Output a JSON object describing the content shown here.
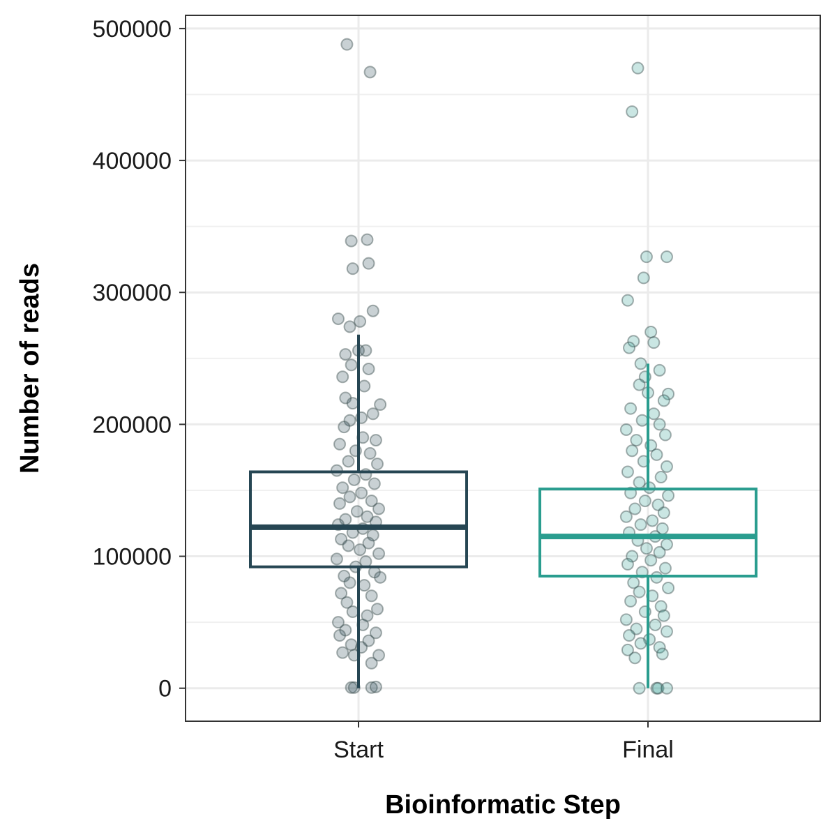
{
  "chart_data": {
    "type": "boxplot",
    "xlabel": "Bioinformatic Step",
    "ylabel": "Number of reads",
    "categories": [
      "Start",
      "Final"
    ],
    "ylim": [
      -25000,
      510000
    ],
    "yticks": [
      0,
      100000,
      200000,
      300000,
      400000,
      500000
    ],
    "ytick_labels": [
      "0",
      "100000",
      "200000",
      "300000",
      "400000",
      "500000"
    ],
    "grid": true,
    "legend": "none",
    "colors": {
      "Start": "#264653",
      "Final": "#2a9d8f",
      "point_stroke": "#5a6a6a"
    },
    "boxes": [
      {
        "category": "Start",
        "min": 0,
        "q1": 92000,
        "median": 122000,
        "q3": 164000,
        "max": 268000
      },
      {
        "category": "Final",
        "min": 0,
        "q1": 85000,
        "median": 115000,
        "q3": 151000,
        "max": 246000
      }
    ],
    "points": {
      "Start": [
        {
          "x": -0.08,
          "y": 488000
        },
        {
          "x": 0.08,
          "y": 467000
        },
        {
          "x": -0.05,
          "y": 339000
        },
        {
          "x": 0.06,
          "y": 340000
        },
        {
          "x": -0.04,
          "y": 318000
        },
        {
          "x": 0.07,
          "y": 322000
        },
        {
          "x": 0.1,
          "y": 286000
        },
        {
          "x": -0.14,
          "y": 280000
        },
        {
          "x": 0.01,
          "y": 278000
        },
        {
          "x": -0.06,
          "y": 274000
        },
        {
          "x": 0.05,
          "y": 256000
        },
        {
          "x": -0.09,
          "y": 253000
        },
        {
          "x": 0.0,
          "y": 256000
        },
        {
          "x": -0.05,
          "y": 245000
        },
        {
          "x": 0.07,
          "y": 242000
        },
        {
          "x": -0.11,
          "y": 236000
        },
        {
          "x": 0.04,
          "y": 229000
        },
        {
          "x": 0.15,
          "y": 215000
        },
        {
          "x": -0.09,
          "y": 220000
        },
        {
          "x": -0.04,
          "y": 216000
        },
        {
          "x": 0.1,
          "y": 208000
        },
        {
          "x": -0.06,
          "y": 203000
        },
        {
          "x": 0.02,
          "y": 205000
        },
        {
          "x": -0.1,
          "y": 198000
        },
        {
          "x": 0.12,
          "y": 188000
        },
        {
          "x": -0.13,
          "y": 185000
        },
        {
          "x": 0.03,
          "y": 190000
        },
        {
          "x": -0.02,
          "y": 180000
        },
        {
          "x": 0.08,
          "y": 178000
        },
        {
          "x": -0.07,
          "y": 172000
        },
        {
          "x": 0.13,
          "y": 170000
        },
        {
          "x": -0.15,
          "y": 165000
        },
        {
          "x": 0.05,
          "y": 162000
        },
        {
          "x": -0.03,
          "y": 158000
        },
        {
          "x": 0.11,
          "y": 155000
        },
        {
          "x": -0.11,
          "y": 152000
        },
        {
          "x": 0.02,
          "y": 148000
        },
        {
          "x": -0.06,
          "y": 145000
        },
        {
          "x": 0.09,
          "y": 142000
        },
        {
          "x": -0.13,
          "y": 140000
        },
        {
          "x": 0.14,
          "y": 136000
        },
        {
          "x": -0.01,
          "y": 134000
        },
        {
          "x": 0.06,
          "y": 130000
        },
        {
          "x": -0.09,
          "y": 128000
        },
        {
          "x": 0.12,
          "y": 126000
        },
        {
          "x": -0.14,
          "y": 124000
        },
        {
          "x": 0.03,
          "y": 121000
        },
        {
          "x": -0.04,
          "y": 118000
        },
        {
          "x": 0.1,
          "y": 116000
        },
        {
          "x": -0.12,
          "y": 113000
        },
        {
          "x": 0.07,
          "y": 110000
        },
        {
          "x": -0.07,
          "y": 108000
        },
        {
          "x": 0.01,
          "y": 105000
        },
        {
          "x": 0.14,
          "y": 102000
        },
        {
          "x": -0.15,
          "y": 98000
        },
        {
          "x": 0.05,
          "y": 96000
        },
        {
          "x": -0.02,
          "y": 92000
        },
        {
          "x": 0.11,
          "y": 88000
        },
        {
          "x": -0.1,
          "y": 85000
        },
        {
          "x": 0.15,
          "y": 84000
        },
        {
          "x": -0.06,
          "y": 80000
        },
        {
          "x": 0.04,
          "y": 78000
        },
        {
          "x": -0.12,
          "y": 72000
        },
        {
          "x": 0.09,
          "y": 70000
        },
        {
          "x": -0.08,
          "y": 65000
        },
        {
          "x": 0.13,
          "y": 60000
        },
        {
          "x": -0.04,
          "y": 58000
        },
        {
          "x": 0.06,
          "y": 55000
        },
        {
          "x": -0.14,
          "y": 50000
        },
        {
          "x": 0.03,
          "y": 48000
        },
        {
          "x": -0.09,
          "y": 44000
        },
        {
          "x": 0.12,
          "y": 42000
        },
        {
          "x": -0.13,
          "y": 40000
        },
        {
          "x": 0.07,
          "y": 36000
        },
        {
          "x": -0.05,
          "y": 33000
        },
        {
          "x": 0.02,
          "y": 31000
        },
        {
          "x": -0.11,
          "y": 27000
        },
        {
          "x": 0.14,
          "y": 25000
        },
        {
          "x": -0.03,
          "y": 25000
        },
        {
          "x": 0.09,
          "y": 19000
        },
        {
          "x": -0.05,
          "y": 500
        },
        {
          "x": -0.03,
          "y": 500
        },
        {
          "x": 0.09,
          "y": 500
        },
        {
          "x": 0.12,
          "y": 1000
        }
      ],
      "Final": [
        {
          "x": -0.11,
          "y": 437000
        },
        {
          "x": -0.07,
          "y": 470000
        },
        {
          "x": -0.01,
          "y": 327000
        },
        {
          "x": 0.13,
          "y": 327000
        },
        {
          "x": -0.03,
          "y": 311000
        },
        {
          "x": -0.14,
          "y": 294000
        },
        {
          "x": 0.02,
          "y": 270000
        },
        {
          "x": 0.04,
          "y": 262000
        },
        {
          "x": -0.1,
          "y": 263000
        },
        {
          "x": -0.13,
          "y": 258000
        },
        {
          "x": -0.05,
          "y": 246000
        },
        {
          "x": 0.08,
          "y": 241000
        },
        {
          "x": -0.02,
          "y": 236000
        },
        {
          "x": -0.06,
          "y": 230000
        },
        {
          "x": 0.14,
          "y": 223000
        },
        {
          "x": 0.0,
          "y": 224000
        },
        {
          "x": 0.11,
          "y": 218000
        },
        {
          "x": -0.12,
          "y": 212000
        },
        {
          "x": 0.04,
          "y": 208000
        },
        {
          "x": -0.04,
          "y": 203000
        },
        {
          "x": 0.08,
          "y": 200000
        },
        {
          "x": -0.15,
          "y": 196000
        },
        {
          "x": 0.12,
          "y": 192000
        },
        {
          "x": -0.08,
          "y": 188000
        },
        {
          "x": 0.02,
          "y": 184000
        },
        {
          "x": -0.11,
          "y": 180000
        },
        {
          "x": 0.06,
          "y": 177000
        },
        {
          "x": -0.03,
          "y": 172000
        },
        {
          "x": 0.13,
          "y": 168000
        },
        {
          "x": -0.14,
          "y": 164000
        },
        {
          "x": 0.09,
          "y": 160000
        },
        {
          "x": -0.06,
          "y": 156000
        },
        {
          "x": 0.01,
          "y": 152000
        },
        {
          "x": -0.12,
          "y": 148000
        },
        {
          "x": 0.14,
          "y": 146000
        },
        {
          "x": -0.02,
          "y": 142000
        },
        {
          "x": 0.07,
          "y": 139000
        },
        {
          "x": -0.09,
          "y": 136000
        },
        {
          "x": 0.11,
          "y": 133000
        },
        {
          "x": -0.15,
          "y": 130000
        },
        {
          "x": 0.03,
          "y": 127000
        },
        {
          "x": -0.05,
          "y": 124000
        },
        {
          "x": 0.1,
          "y": 121000
        },
        {
          "x": -0.13,
          "y": 118000
        },
        {
          "x": 0.05,
          "y": 115000
        },
        {
          "x": -0.07,
          "y": 112000
        },
        {
          "x": 0.13,
          "y": 109000
        },
        {
          "x": -0.01,
          "y": 106000
        },
        {
          "x": 0.08,
          "y": 103000
        },
        {
          "x": -0.11,
          "y": 100000
        },
        {
          "x": 0.02,
          "y": 97000
        },
        {
          "x": -0.14,
          "y": 94000
        },
        {
          "x": 0.12,
          "y": 91000
        },
        {
          "x": -0.04,
          "y": 88000
        },
        {
          "x": 0.06,
          "y": 84000
        },
        {
          "x": -0.1,
          "y": 80000
        },
        {
          "x": 0.14,
          "y": 76000
        },
        {
          "x": -0.06,
          "y": 73000
        },
        {
          "x": 0.03,
          "y": 70000
        },
        {
          "x": -0.12,
          "y": 66000
        },
        {
          "x": 0.09,
          "y": 62000
        },
        {
          "x": -0.02,
          "y": 58000
        },
        {
          "x": 0.11,
          "y": 55000
        },
        {
          "x": -0.15,
          "y": 52000
        },
        {
          "x": 0.05,
          "y": 48000
        },
        {
          "x": -0.08,
          "y": 45000
        },
        {
          "x": 0.13,
          "y": 43000
        },
        {
          "x": -0.13,
          "y": 40000
        },
        {
          "x": 0.01,
          "y": 37000
        },
        {
          "x": -0.05,
          "y": 34000
        },
        {
          "x": 0.08,
          "y": 31000
        },
        {
          "x": -0.14,
          "y": 29000
        },
        {
          "x": 0.1,
          "y": 26000
        },
        {
          "x": -0.09,
          "y": 23000
        },
        {
          "x": -0.06,
          "y": 0
        },
        {
          "x": 0.06,
          "y": 0
        },
        {
          "x": 0.07,
          "y": 0
        },
        {
          "x": 0.13,
          "y": 0
        }
      ]
    }
  }
}
